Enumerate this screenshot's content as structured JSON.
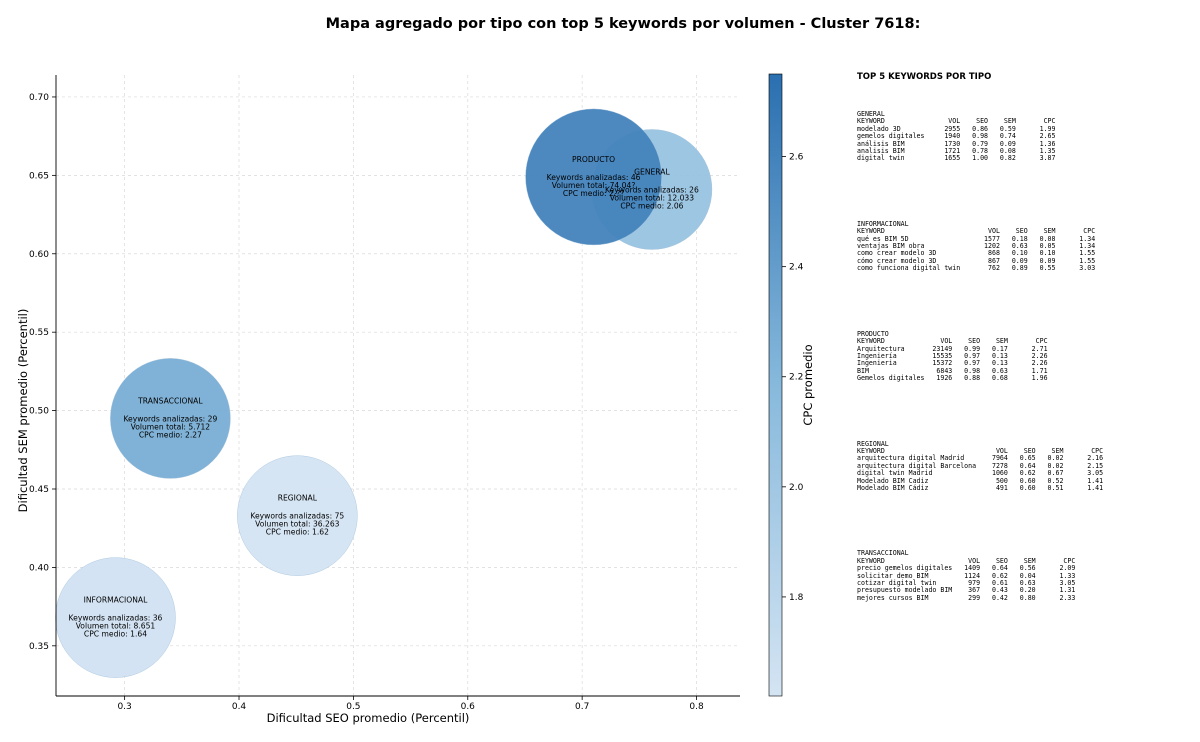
{
  "chart_data": {
    "type": "scatter",
    "title": "Mapa agregado por tipo con top 5 keywords por volumen - Cluster 7618:",
    "xlabel": "Dificultad SEO promedio (Percentil)",
    "ylabel": "Dificultad SEM promedio (Percentil)",
    "xlim": [
      0.24,
      0.838
    ],
    "ylim": [
      0.318,
      0.714
    ],
    "xticks": [
      "0.3",
      "0.4",
      "0.5",
      "0.6",
      "0.7",
      "0.8"
    ],
    "yticks": [
      "0.35",
      "0.40",
      "0.45",
      "0.50",
      "0.55",
      "0.60",
      "0.65",
      "0.70"
    ],
    "grid": true,
    "bubble_size": "volumen total",
    "color": "CPC medio",
    "colorbar": {
      "label": "CPC promedio",
      "range": [
        1.62,
        2.75
      ],
      "ticks": [
        "1.8",
        "2.0",
        "2.2",
        "2.4",
        "2.6"
      ],
      "colors": [
        "#d4e4f3",
        "#2a6fb0"
      ]
    },
    "points": [
      {
        "name": "INFORMACIONAL",
        "x": 0.292,
        "y": 0.368,
        "keywords_label": "Keywords analizadas: 36",
        "volume_label": "Volumen total: 8.651",
        "cpc_label": "CPC medio: 1.64",
        "cpc": 1.64,
        "volume": 8651
      },
      {
        "name": "REGIONAL",
        "x": 0.451,
        "y": 0.433,
        "keywords_label": "Keywords analizadas: 75",
        "volume_label": "Volumen total: 36.263",
        "cpc_label": "CPC medio: 1.62",
        "cpc": 1.62,
        "volume": 36263
      },
      {
        "name": "TRANSACCIONAL",
        "x": 0.34,
        "y": 0.495,
        "keywords_label": "Keywords analizadas: 29",
        "volume_label": "Volumen total: 5.712",
        "cpc_label": "CPC medio: 2.27",
        "cpc": 2.27,
        "volume": 5712
      },
      {
        "name": "GENERAL",
        "x": 0.761,
        "y": 0.641,
        "keywords_label": "Keywords analizadas: 26",
        "volume_label": "Volumen total: 12.033",
        "cpc_label": "CPC medio: 2.06",
        "cpc": 2.06,
        "volume": 12033
      },
      {
        "name": "PRODUCTO",
        "x": 0.71,
        "y": 0.649,
        "keywords_label": "Keywords analizadas: 46",
        "volume_label": "Volumen total: 74.04?",
        "cpc_label": "CPC medio: 2.??",
        "cpc": 2.6,
        "volume": 74040
      }
    ]
  },
  "panel": {
    "title": "TOP 5 KEYWORDS POR TIPO",
    "groups": [
      {
        "name": "GENERAL",
        "header": "KEYWORD                VOL    SEO    SEM       CPC",
        "rows": [
          "modelado 3D           2955   0.86   0.59      1.99",
          "gemelos digitales     1940   0.98   0.74      2.65",
          "análisis BIM          1730   0.79   0.09      1.36",
          "analisis BIM          1721   0.78   0.08      1.35",
          "digital twin          1655   1.00   0.82      3.87"
        ]
      },
      {
        "name": "INFORMACIONAL",
        "header": "KEYWORD                          VOL    SEO    SEM       CPC",
        "rows": [
          "qué es BIM 5D                   1577   0.18   0.08      1.34",
          "ventajas BIM obra               1202   0.63   0.05      1.34",
          "como crear modelo 3D             868   0.10   0.10      1.55",
          "cómo crear modelo 3D             867   0.09   0.09      1.55",
          "como funciona digital twin       762   0.89   0.55      3.03"
        ]
      },
      {
        "name": "PRODUCTO",
        "header": "KEYWORD              VOL    SEO    SEM       CPC",
        "rows": [
          "Arquitectura       23149   0.99   0.17      2.71",
          "Ingeniería         15535   0.97   0.13      2.26",
          "Ingenieria         15372   0.97   0.13      2.26",
          "BIM                 6843   0.98   0.63      1.71",
          "Gemelos digitales   1926   0.88   0.68      1.96"
        ]
      },
      {
        "name": "REGIONAL",
        "header": "KEYWORD                            VOL    SEO    SEM       CPC",
        "rows": [
          "arquitectura digital Madrid       7964   0.65   0.02      2.16",
          "arquitectura digital Barcelona    7278   0.64   0.02      2.15",
          "digital twin Madrid               1060   0.62   0.67      3.05",
          "Modelado BIM Cadiz                 500   0.60   0.52      1.41",
          "Modelado BIM Cádiz                 491   0.60   0.51      1.41"
        ]
      },
      {
        "name": "TRANSACCIONAL",
        "header": "KEYWORD                     VOL    SEO    SEM       CPC",
        "rows": [
          "precio gemelos digitales   1409   0.64   0.56      2.09",
          "solicitar demo BIM         1124   0.62   0.04      1.33",
          "cotizar digital twin        979   0.61   0.63      3.05",
          "presupuesto modelado BIM    367   0.43   0.20      1.31",
          "mejores cursos BIM          299   0.42   0.80      2.33"
        ]
      }
    ]
  }
}
